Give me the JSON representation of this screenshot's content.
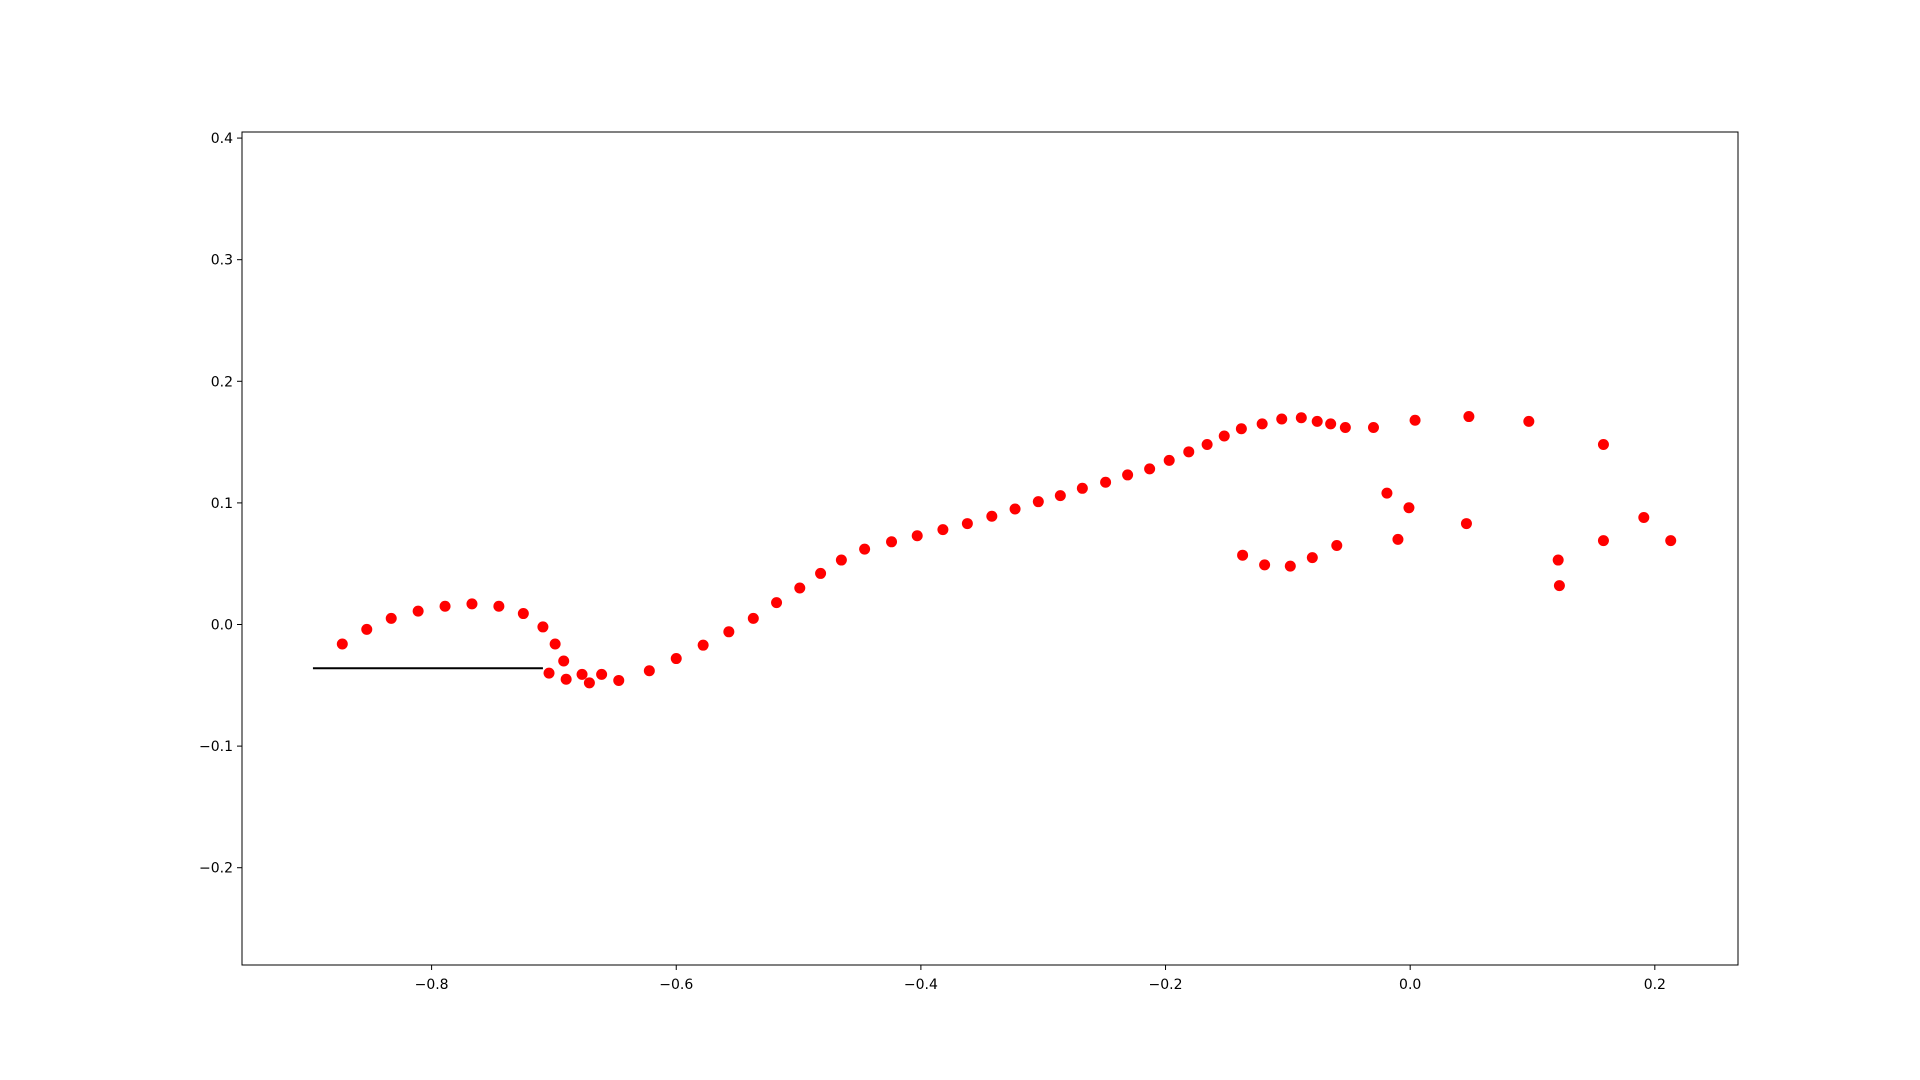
{
  "chart_data": {
    "type": "scatter",
    "title": "",
    "xlabel": "",
    "ylabel": "",
    "xlim": [
      -0.955,
      0.268
    ],
    "ylim": [
      -0.28,
      0.405
    ],
    "grid": false,
    "xticks": [
      -0.8,
      -0.6,
      -0.4,
      -0.2,
      0.0,
      0.2
    ],
    "yticks": [
      -0.2,
      -0.1,
      0.0,
      0.1,
      0.2,
      0.3,
      0.4
    ],
    "xtick_labels": [
      "−0.8",
      "−0.6",
      "−0.4",
      "−0.2",
      "0.0",
      "0.2"
    ],
    "ytick_labels": [
      "−0.2",
      "−0.1",
      "0.0",
      "0.1",
      "0.2",
      "0.3",
      "0.4"
    ],
    "series": [
      {
        "color": "#ff0000",
        "marker": "circle",
        "points": [
          [
            -0.873,
            -0.016
          ],
          [
            -0.853,
            -0.004
          ],
          [
            -0.833,
            0.005
          ],
          [
            -0.811,
            0.011
          ],
          [
            -0.789,
            0.015
          ],
          [
            -0.767,
            0.017
          ],
          [
            -0.745,
            0.015
          ],
          [
            -0.725,
            0.009
          ],
          [
            -0.709,
            -0.002
          ],
          [
            -0.699,
            -0.016
          ],
          [
            -0.692,
            -0.03
          ],
          [
            -0.704,
            -0.04
          ],
          [
            -0.69,
            -0.045
          ],
          [
            -0.677,
            -0.041
          ],
          [
            -0.671,
            -0.048
          ],
          [
            -0.661,
            -0.041
          ],
          [
            -0.647,
            -0.046
          ],
          [
            -0.622,
            -0.038
          ],
          [
            -0.6,
            -0.028
          ],
          [
            -0.578,
            -0.017
          ],
          [
            -0.557,
            -0.006
          ],
          [
            -0.537,
            0.005
          ],
          [
            -0.518,
            0.018
          ],
          [
            -0.499,
            0.03
          ],
          [
            -0.482,
            0.042
          ],
          [
            -0.465,
            0.053
          ],
          [
            -0.446,
            0.062
          ],
          [
            -0.424,
            0.068
          ],
          [
            -0.403,
            0.073
          ],
          [
            -0.382,
            0.078
          ],
          [
            -0.362,
            0.083
          ],
          [
            -0.342,
            0.089
          ],
          [
            -0.323,
            0.095
          ],
          [
            -0.304,
            0.101
          ],
          [
            -0.286,
            0.106
          ],
          [
            -0.268,
            0.112
          ],
          [
            -0.249,
            0.117
          ],
          [
            -0.231,
            0.123
          ],
          [
            -0.213,
            0.128
          ],
          [
            -0.197,
            0.135
          ],
          [
            -0.181,
            0.142
          ],
          [
            -0.166,
            0.148
          ],
          [
            -0.152,
            0.155
          ],
          [
            -0.138,
            0.161
          ],
          [
            -0.121,
            0.165
          ],
          [
            -0.105,
            0.169
          ],
          [
            -0.089,
            0.17
          ],
          [
            -0.076,
            0.167
          ],
          [
            -0.065,
            0.165
          ],
          [
            -0.053,
            0.162
          ],
          [
            -0.03,
            0.162
          ],
          [
            0.004,
            0.168
          ],
          [
            0.048,
            0.171
          ],
          [
            0.097,
            0.167
          ],
          [
            0.158,
            0.148
          ],
          [
            -0.137,
            0.057
          ],
          [
            -0.119,
            0.049
          ],
          [
            -0.098,
            0.048
          ],
          [
            -0.08,
            0.055
          ],
          [
            -0.06,
            0.065
          ],
          [
            -0.019,
            0.108
          ],
          [
            -0.01,
            0.07
          ],
          [
            -0.001,
            0.096
          ],
          [
            0.046,
            0.083
          ],
          [
            0.121,
            0.053
          ],
          [
            0.122,
            0.032
          ],
          [
            0.158,
            0.069
          ],
          [
            0.191,
            0.088
          ],
          [
            0.213,
            0.069
          ]
        ]
      }
    ],
    "line": {
      "color": "#000000",
      "points": [
        [
          -0.897,
          -0.036
        ],
        [
          -0.709,
          -0.036
        ]
      ]
    }
  }
}
